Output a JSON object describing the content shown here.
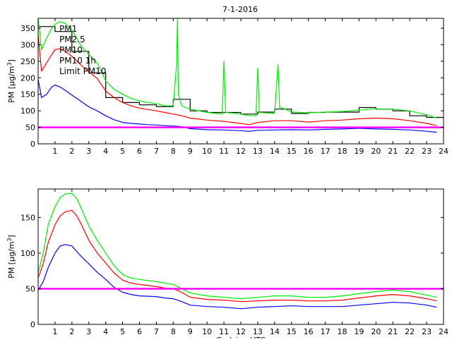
{
  "title": "7-1-2016",
  "colors": {
    "pm1": "#0000ff",
    "pm25": "#ff0000",
    "pm10": "#00ee00",
    "pm10_1h": "#000000",
    "limit": "#ff00ff",
    "axis": "#000000"
  },
  "chart_data": [
    {
      "type": "line",
      "title": "7-1-2016",
      "xlabel": "",
      "ylabel": "PM [µg/m³]",
      "ylabel_main": "PM [µg/m",
      "ylabel_sup": "3",
      "ylabel_end": "]",
      "xlim": [
        0,
        24
      ],
      "ylim": [
        0,
        380
      ],
      "yticks": [
        0,
        50,
        100,
        150,
        200,
        250,
        300,
        350
      ],
      "xticks": [
        1,
        2,
        3,
        4,
        5,
        6,
        7,
        8,
        9,
        10,
        11,
        12,
        13,
        14,
        15,
        16,
        17,
        18,
        19,
        20,
        21,
        22,
        23,
        24
      ],
      "grid": false,
      "legend": {
        "placement": "top-left",
        "entries": [
          {
            "label": "PM1",
            "color": "#0000ff"
          },
          {
            "label": "PM2.5",
            "color": "#ff0000"
          },
          {
            "label": "PM10",
            "color": "#00ee00"
          },
          {
            "label": "PM10 1h",
            "color": "#000000"
          },
          {
            "label": "Limit PM10",
            "color": "#ff00ff"
          }
        ]
      },
      "series": [
        {
          "name": "PM1",
          "x": [
            0,
            0.2,
            0.5,
            0.8,
            1,
            1.3,
            1.6,
            2,
            2.5,
            3,
            3.5,
            4,
            4.5,
            5,
            5.5,
            6,
            6.5,
            7,
            7.5,
            8,
            8.5,
            9,
            10,
            11,
            12,
            12.5,
            13,
            14,
            15,
            16,
            17,
            18,
            19,
            20,
            21,
            22,
            23,
            23.6
          ],
          "y": [
            195,
            140,
            150,
            172,
            178,
            172,
            162,
            148,
            130,
            112,
            100,
            85,
            73,
            65,
            62,
            60,
            58,
            57,
            55,
            54,
            52,
            46,
            43,
            42,
            40,
            38,
            41,
            42,
            43,
            42,
            44,
            45,
            47,
            45,
            44,
            42,
            38,
            35
          ]
        },
        {
          "name": "PM2.5",
          "x": [
            0,
            0.2,
            0.5,
            0.8,
            1,
            1.3,
            1.6,
            2,
            2.5,
            3,
            3.5,
            4,
            4.5,
            5,
            5.5,
            6,
            6.5,
            7,
            7.5,
            8,
            8.5,
            9,
            10,
            11,
            12,
            12.5,
            13,
            14,
            15,
            16,
            17,
            18,
            19,
            20,
            21,
            22,
            23,
            23.6
          ],
          "y": [
            330,
            220,
            245,
            270,
            285,
            288,
            280,
            265,
            240,
            218,
            198,
            160,
            140,
            125,
            115,
            108,
            104,
            100,
            95,
            90,
            85,
            78,
            72,
            68,
            62,
            58,
            65,
            70,
            70,
            66,
            70,
            72,
            76,
            78,
            76,
            70,
            62,
            55
          ]
        },
        {
          "name": "PM10",
          "x": [
            0,
            0.2,
            0.5,
            0.8,
            1,
            1.3,
            1.6,
            2,
            2.5,
            3,
            3.5,
            4,
            4.5,
            5,
            5.5,
            6,
            6.5,
            7,
            7.5,
            8,
            8.2,
            8.25,
            8.3,
            8.5,
            9,
            10,
            10.9,
            11,
            11.1,
            12,
            12.5,
            12.9,
            13,
            13.1,
            14,
            14.2,
            14.3,
            14.4,
            15,
            16,
            17,
            18,
            19,
            20,
            21,
            22,
            23,
            23.6
          ],
          "y": [
            380,
            285,
            320,
            350,
            362,
            370,
            365,
            345,
            300,
            270,
            245,
            190,
            165,
            150,
            138,
            130,
            125,
            122,
            115,
            115,
            240,
            380,
            150,
            115,
            105,
            95,
            90,
            250,
            95,
            90,
            85,
            85,
            230,
            95,
            92,
            240,
            105,
            110,
            96,
            94,
            96,
            98,
            102,
            106,
            105,
            100,
            88,
            78
          ]
        },
        {
          "name": "PM10 1h",
          "x": [
            0,
            1,
            1,
            2,
            2,
            3,
            3,
            4,
            4,
            5,
            5,
            6,
            6,
            7,
            7,
            8,
            8,
            9,
            9,
            10,
            10,
            11,
            11,
            12,
            12,
            13,
            13,
            14,
            14,
            15,
            15,
            16,
            16,
            17,
            17,
            18,
            18,
            19,
            19,
            20,
            20,
            21,
            21,
            22,
            22,
            23,
            23,
            24
          ],
          "y": [
            355,
            355,
            340,
            340,
            280,
            280,
            215,
            215,
            140,
            140,
            125,
            125,
            118,
            118,
            113,
            113,
            135,
            135,
            100,
            100,
            95,
            95,
            95,
            95,
            90,
            90,
            96,
            96,
            105,
            105,
            92,
            92,
            95,
            95,
            96,
            96,
            96,
            96,
            110,
            110,
            105,
            105,
            100,
            100,
            85,
            85,
            80,
            80
          ]
        },
        {
          "name": "Limit PM10",
          "x": [
            0,
            24
          ],
          "y": [
            50,
            50
          ]
        }
      ]
    },
    {
      "type": "line",
      "xlabel": "Godzina UTC",
      "ylabel": "PM [µg/m³]",
      "ylabel_main": "PM [µg/m",
      "ylabel_sup": "3",
      "ylabel_end": "]",
      "xlim": [
        0,
        24
      ],
      "ylim": [
        0,
        190
      ],
      "yticks": [
        0,
        50,
        100,
        150
      ],
      "xticks": [
        1,
        2,
        3,
        4,
        5,
        6,
        7,
        8,
        9,
        10,
        11,
        12,
        13,
        14,
        15,
        16,
        17,
        18,
        19,
        20,
        21,
        22,
        23,
        24
      ],
      "grid": false,
      "series": [
        {
          "name": "PM1",
          "x": [
            0,
            0.3,
            0.6,
            1,
            1.3,
            1.6,
            2,
            2.3,
            2.6,
            3,
            3.5,
            4,
            4.5,
            5,
            5.5,
            6,
            7,
            7.5,
            8,
            8.5,
            9,
            10,
            11,
            12,
            13,
            14,
            15,
            16,
            17,
            18,
            19,
            20,
            21,
            22,
            23,
            23.6
          ],
          "y": [
            48,
            60,
            80,
            100,
            110,
            112,
            110,
            102,
            94,
            85,
            73,
            63,
            52,
            45,
            42,
            40,
            39,
            37,
            36,
            32,
            27,
            25,
            24,
            22,
            24,
            25,
            26,
            25,
            25,
            25,
            27,
            29,
            31,
            30,
            27,
            24
          ]
        },
        {
          "name": "PM2.5",
          "x": [
            0,
            0.3,
            0.6,
            1,
            1.3,
            1.6,
            2,
            2.3,
            2.6,
            3,
            3.5,
            4,
            4.5,
            5,
            5.5,
            6,
            7,
            7.5,
            8,
            8.5,
            9,
            10,
            11,
            12,
            13,
            14,
            15,
            16,
            17,
            18,
            19,
            20,
            21,
            22,
            23,
            23.6
          ],
          "y": [
            65,
            85,
            115,
            140,
            152,
            158,
            160,
            152,
            138,
            118,
            100,
            86,
            72,
            62,
            58,
            56,
            53,
            51,
            50,
            45,
            38,
            35,
            34,
            32,
            33,
            34,
            34,
            33,
            33,
            34,
            37,
            40,
            42,
            40,
            36,
            33
          ]
        },
        {
          "name": "PM10",
          "x": [
            0,
            0.3,
            0.6,
            1,
            1.3,
            1.6,
            2,
            2.3,
            2.6,
            3,
            3.5,
            4,
            4.5,
            5,
            5.5,
            6,
            7,
            7.5,
            8,
            8.5,
            9,
            10,
            11,
            12,
            13,
            14,
            15,
            16,
            17,
            18,
            19,
            20,
            21,
            22,
            23,
            23.6
          ],
          "y": [
            72,
            100,
            140,
            165,
            178,
            183,
            184,
            176,
            160,
            138,
            118,
            100,
            82,
            70,
            65,
            63,
            60,
            58,
            56,
            50,
            44,
            40,
            38,
            36,
            38,
            40,
            40,
            38,
            38,
            40,
            43,
            46,
            48,
            46,
            41,
            38
          ]
        },
        {
          "name": "Limit PM10",
          "x": [
            0,
            24
          ],
          "y": [
            50,
            50
          ]
        }
      ]
    }
  ]
}
